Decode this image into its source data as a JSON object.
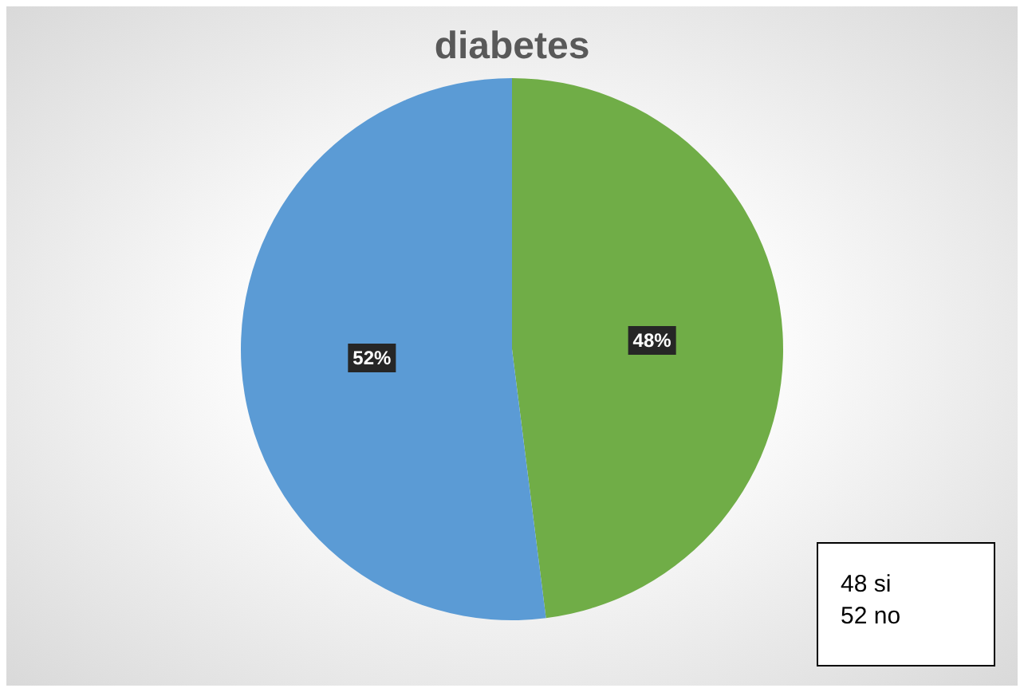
{
  "chart_data": {
    "type": "pie",
    "title": "diabetes",
    "categories": [
      null,
      null
    ],
    "values": [
      48,
      52
    ],
    "colors": [
      "#70ad47",
      "#5b9bd5"
    ],
    "value_labels": [
      "48%",
      "52%"
    ],
    "annotations": [
      "48 si",
      "52 no"
    ]
  }
}
